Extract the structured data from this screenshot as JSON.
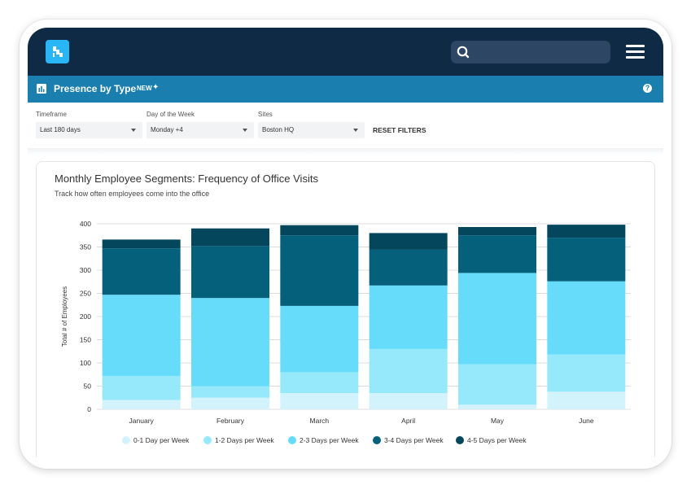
{
  "app": {
    "logo_icon": "app-logo-icon",
    "search_icon": "search-icon",
    "menu_icon": "hamburger-menu-icon",
    "colors": {
      "navy": "#0f2a44",
      "blue": "#1a7fae",
      "search_bg": "#2c4663"
    }
  },
  "titlebar": {
    "title": "Presence by Type",
    "new_badge": "NEW",
    "chart_icon": "bar-chart-icon",
    "sparkle_icon": "sparkle-icon",
    "help_icon": "help-icon"
  },
  "filters": {
    "timeframe": {
      "label": "Timeframe",
      "value": "Last 180 days"
    },
    "day_of_week": {
      "label": "Day of the Week",
      "value": "Monday +4"
    },
    "sites": {
      "label": "Sites",
      "value": "Boston HQ"
    },
    "reset_label": "RESET FILTERS"
  },
  "card": {
    "title": "Monthly Employee Segments: Frequency of Office Visits",
    "subtitle": "Track how often employees come into the office"
  },
  "chart_data": {
    "type": "bar",
    "stacked": true,
    "categories": [
      "January",
      "February",
      "March",
      "April",
      "May",
      "June"
    ],
    "ylabel": "Total # of Employees",
    "ylim": [
      0,
      400
    ],
    "yticks": [
      0,
      50,
      100,
      150,
      200,
      250,
      300,
      350,
      400
    ],
    "grid": true,
    "legend_position": "bottom",
    "series": [
      {
        "name": "0-1 Day per Week",
        "color": "#d2f3fb",
        "values": [
          20,
          25,
          35,
          35,
          10,
          38
        ]
      },
      {
        "name": "1-2 Days per Week",
        "color": "#96e8fb",
        "values": [
          52,
          25,
          45,
          95,
          87,
          80
        ]
      },
      {
        "name": "2-3 Days per Week",
        "color": "#66dcfa",
        "values": [
          175,
          190,
          143,
          137,
          197,
          158
        ]
      },
      {
        "name": "3-4 Days per Week",
        "color": "#05607b",
        "values": [
          100,
          112,
          152,
          77,
          81,
          94
        ]
      },
      {
        "name": "4-5 Days per Week",
        "color": "#04465b",
        "values": [
          19,
          38,
          22,
          36,
          18,
          28
        ]
      }
    ]
  }
}
